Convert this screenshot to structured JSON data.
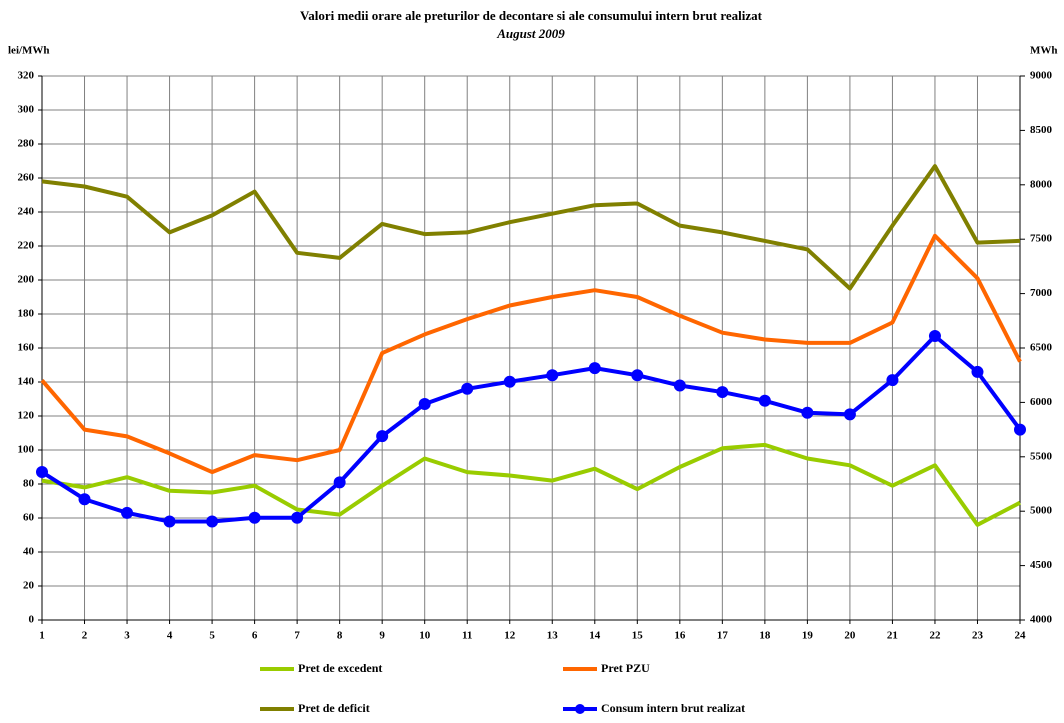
{
  "chart_data": {
    "type": "line",
    "title": "Valori medii orare ale preturilor de decontare si ale consumului intern brut realizat",
    "subtitle": "August 2009",
    "y_label": "lei/MWh",
    "y2_label": "MWh",
    "x": [
      1,
      2,
      3,
      4,
      5,
      6,
      7,
      8,
      9,
      10,
      11,
      12,
      13,
      14,
      15,
      16,
      17,
      18,
      19,
      20,
      21,
      22,
      23,
      24
    ],
    "xlim": [
      1,
      24
    ],
    "xticks": [
      1,
      2,
      3,
      4,
      5,
      6,
      7,
      8,
      9,
      10,
      11,
      12,
      13,
      14,
      15,
      16,
      17,
      18,
      19,
      20,
      21,
      22,
      23,
      24
    ],
    "ylim": [
      0,
      320
    ],
    "yticks": [
      0,
      20,
      40,
      60,
      80,
      100,
      120,
      140,
      160,
      180,
      200,
      220,
      240,
      260,
      280,
      300,
      320
    ],
    "y2lim": [
      4000,
      9000
    ],
    "y2ticks": [
      4000,
      4500,
      5000,
      5500,
      6000,
      6500,
      7000,
      7500,
      8000,
      8500,
      9000
    ],
    "grid": true,
    "series": [
      {
        "name": "Pret de excedent",
        "color": "#99cc00",
        "values": [
          82,
          78,
          84,
          76,
          75,
          79,
          65,
          62,
          79,
          95,
          87,
          85,
          82,
          89,
          77,
          90,
          101,
          103,
          95,
          91,
          79,
          91,
          56,
          69
        ]
      },
      {
        "name": "Pret PZU",
        "color": "#ff6600",
        "values": [
          141,
          112,
          108,
          98,
          87,
          97,
          94,
          100,
          157,
          168,
          177,
          185,
          190,
          194,
          190,
          179,
          169,
          165,
          163,
          163,
          175,
          226,
          201,
          152
        ]
      },
      {
        "name": "Pret de deficit",
        "color": "#808000",
        "values": [
          258,
          255,
          249,
          228,
          238,
          252,
          216,
          213,
          233,
          227,
          228,
          234,
          239,
          244,
          245,
          232,
          228,
          223,
          218,
          195,
          232,
          267,
          222,
          223
        ]
      },
      {
        "name": "Consum intern brut realizat",
        "color": "#0000ff",
        "axis": "y2",
        "marker": true,
        "values": [
          5360,
          5110,
          4985,
          4905,
          4905,
          4940,
          4940,
          5265,
          5690,
          5985,
          6125,
          6190,
          6250,
          6315,
          6250,
          6155,
          6095,
          6015,
          5905,
          5890,
          6205,
          6610,
          6280,
          5750
        ]
      }
    ]
  }
}
